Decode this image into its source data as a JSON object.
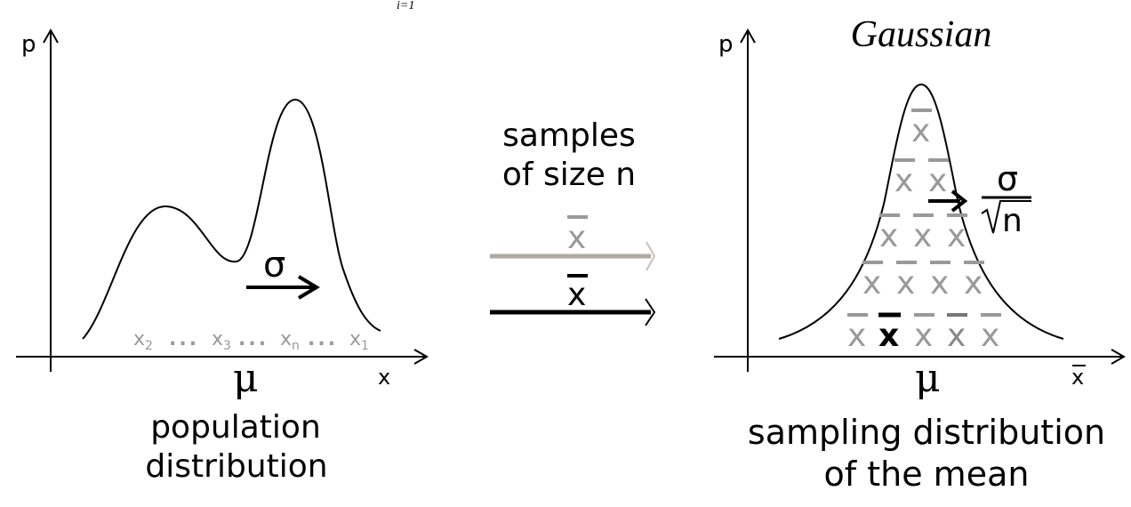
{
  "top_fragment": "i=1",
  "colors": {
    "ink": "#000000",
    "gray": "#999999",
    "arrow_gray": "#b0a8a2"
  },
  "left_panel": {
    "y_axis_label": "p",
    "x_axis_label": "x",
    "mean_label": "μ",
    "sigma_label": "σ",
    "samples": [
      "x2",
      "…",
      "x3",
      "…",
      "xn",
      "…",
      "x1"
    ],
    "sample_parts": [
      {
        "base": "x",
        "sub": "2"
      },
      {
        "dots": "..."
      },
      {
        "base": "x",
        "sub": "3"
      },
      {
        "dots": "..."
      },
      {
        "base": "x",
        "sub": "n"
      },
      {
        "dots": "..."
      },
      {
        "base": "x",
        "sub": "1"
      }
    ],
    "caption_line1": "population",
    "caption_line2": "distribution"
  },
  "middle": {
    "line1": "samples",
    "line2": "of size n",
    "arrow1_label": "x̄",
    "arrow2_label": "x̄"
  },
  "right_panel": {
    "title": "Gaussian",
    "y_axis_label": "p",
    "x_axis_label": "x̄",
    "mean_label": "μ",
    "sigma_numerator": "σ",
    "sigma_denominator": "n",
    "xbar_symbol": "x",
    "caption_line1": "sampling distribution",
    "caption_line2": "of the mean"
  }
}
